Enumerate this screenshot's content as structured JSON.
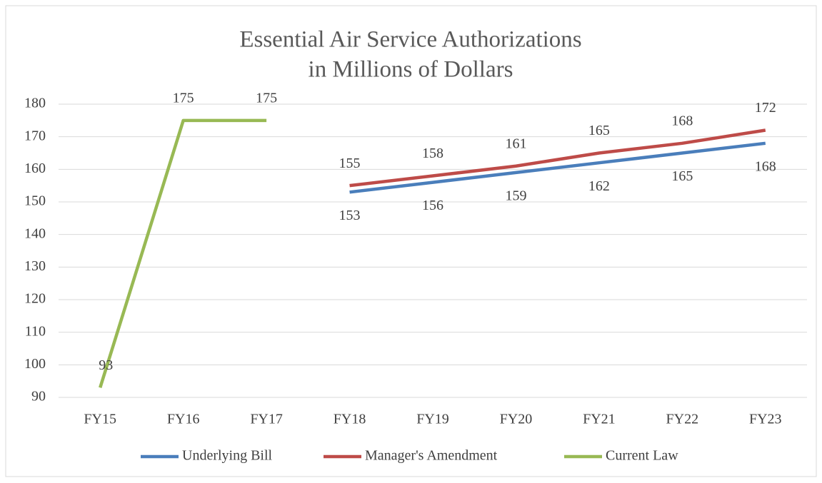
{
  "chart_data": {
    "type": "line",
    "title": [
      "Essential Air Service Authorizations",
      "in Millions of Dollars"
    ],
    "categories": [
      "FY15",
      "FY16",
      "FY17",
      "FY18",
      "FY19",
      "FY20",
      "FY21",
      "FY22",
      "FY23"
    ],
    "series": [
      {
        "name": "Underlying Bill",
        "color": "#4a7ebb",
        "values": [
          null,
          null,
          null,
          153,
          156,
          159,
          162,
          165,
          168
        ]
      },
      {
        "name": "Manager's Amendment",
        "color": "#be4b48",
        "values": [
          null,
          null,
          null,
          155,
          158,
          161,
          165,
          168,
          172
        ]
      },
      {
        "name": "Current Law",
        "color": "#98b954",
        "values": [
          93,
          175,
          175,
          null,
          null,
          null,
          null,
          null,
          null
        ]
      }
    ],
    "ylim": [
      90,
      180
    ],
    "yticks": [
      90,
      100,
      110,
      120,
      130,
      140,
      150,
      160,
      170,
      180
    ],
    "grid": true,
    "legend": "bottom"
  }
}
